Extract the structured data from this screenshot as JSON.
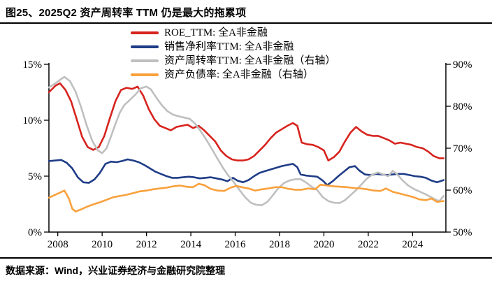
{
  "title": "图25、2025Q2 资产周转率 TTM 仍是最大的拖累项",
  "source_note": "数据来源：Wind，兴业证券经济与金融研究院整理",
  "chart_data": {
    "type": "line",
    "title": "图25、2025Q2 资产周转率 TTM 仍是最大的拖累项",
    "legend_position": "top-left-inside",
    "grid": "off",
    "x_axis": {
      "range": [
        2007.6,
        2025.5
      ],
      "ticks": [
        2008,
        2010,
        2012,
        2014,
        2016,
        2018,
        2020,
        2022,
        2024
      ],
      "labels": [
        "2008",
        "2010",
        "2012",
        "2014",
        "2016",
        "2018",
        "2020",
        "2022",
        "2024"
      ]
    },
    "left_axis": {
      "range": [
        0,
        15
      ],
      "tick_values": [
        0,
        5,
        10,
        15
      ],
      "tick_labels": [
        "0%",
        "5%",
        "10%",
        "15%"
      ]
    },
    "right_axis": {
      "range": [
        50,
        90
      ],
      "tick_values": [
        50,
        60,
        70,
        80,
        90
      ],
      "tick_labels": [
        "50%",
        "60%",
        "70%",
        "80%",
        "90%"
      ]
    },
    "series": [
      {
        "id": "roe_ttm",
        "name": "ROE_TTM: 全A非金融",
        "axis": "left",
        "color": "#d7231e",
        "points": [
          [
            2007.6,
            12.5
          ],
          [
            2007.9,
            13.1
          ],
          [
            2008.1,
            13.3
          ],
          [
            2008.35,
            12.7
          ],
          [
            2008.6,
            11.7
          ],
          [
            2008.85,
            10.1
          ],
          [
            2009.1,
            8.5
          ],
          [
            2009.35,
            7.6
          ],
          [
            2009.6,
            7.35
          ],
          [
            2009.85,
            7.6
          ],
          [
            2010.1,
            8.6
          ],
          [
            2010.35,
            10.2
          ],
          [
            2010.6,
            11.7
          ],
          [
            2010.85,
            12.7
          ],
          [
            2011.1,
            12.9
          ],
          [
            2011.35,
            12.8
          ],
          [
            2011.6,
            13.0
          ],
          [
            2011.85,
            12.2
          ],
          [
            2012.1,
            11.0
          ],
          [
            2012.35,
            10.1
          ],
          [
            2012.6,
            9.5
          ],
          [
            2012.85,
            9.3
          ],
          [
            2013.1,
            9.1
          ],
          [
            2013.35,
            9.4
          ],
          [
            2013.6,
            9.5
          ],
          [
            2013.85,
            9.6
          ],
          [
            2014.1,
            9.3
          ],
          [
            2014.35,
            9.5
          ],
          [
            2014.6,
            9.1
          ],
          [
            2014.85,
            8.6
          ],
          [
            2015.1,
            8.1
          ],
          [
            2015.35,
            7.3
          ],
          [
            2015.6,
            6.8
          ],
          [
            2015.85,
            6.5
          ],
          [
            2016.1,
            6.4
          ],
          [
            2016.35,
            6.4
          ],
          [
            2016.6,
            6.5
          ],
          [
            2016.85,
            6.8
          ],
          [
            2017.1,
            7.3
          ],
          [
            2017.35,
            7.8
          ],
          [
            2017.6,
            8.4
          ],
          [
            2017.85,
            8.9
          ],
          [
            2018.1,
            9.2
          ],
          [
            2018.35,
            9.5
          ],
          [
            2018.6,
            9.75
          ],
          [
            2018.8,
            9.5
          ],
          [
            2019.0,
            8.0
          ],
          [
            2019.25,
            7.85
          ],
          [
            2019.5,
            7.8
          ],
          [
            2019.75,
            7.6
          ],
          [
            2020.0,
            7.3
          ],
          [
            2020.2,
            6.4
          ],
          [
            2020.45,
            6.7
          ],
          [
            2020.7,
            7.2
          ],
          [
            2020.95,
            8.1
          ],
          [
            2021.2,
            8.9
          ],
          [
            2021.45,
            9.4
          ],
          [
            2021.7,
            9.0
          ],
          [
            2021.95,
            8.7
          ],
          [
            2022.2,
            8.6
          ],
          [
            2022.45,
            8.6
          ],
          [
            2022.7,
            8.4
          ],
          [
            2022.95,
            8.2
          ],
          [
            2023.2,
            7.9
          ],
          [
            2023.45,
            8.0
          ],
          [
            2023.7,
            7.9
          ],
          [
            2023.95,
            7.8
          ],
          [
            2024.2,
            7.6
          ],
          [
            2024.45,
            7.5
          ],
          [
            2024.7,
            7.2
          ],
          [
            2024.95,
            6.8
          ],
          [
            2025.2,
            6.6
          ],
          [
            2025.4,
            6.6
          ]
        ]
      },
      {
        "id": "net_margin_ttm",
        "name": "销售净利率TTM: 全A非金融",
        "axis": "left",
        "color": "#1f3c87",
        "points": [
          [
            2007.6,
            6.35
          ],
          [
            2007.9,
            6.4
          ],
          [
            2008.15,
            6.45
          ],
          [
            2008.4,
            6.2
          ],
          [
            2008.65,
            5.7
          ],
          [
            2008.9,
            4.9
          ],
          [
            2009.15,
            4.45
          ],
          [
            2009.4,
            4.4
          ],
          [
            2009.65,
            4.7
          ],
          [
            2009.9,
            5.3
          ],
          [
            2010.15,
            6.1
          ],
          [
            2010.4,
            6.3
          ],
          [
            2010.65,
            6.25
          ],
          [
            2010.9,
            6.35
          ],
          [
            2011.15,
            6.5
          ],
          [
            2011.4,
            6.4
          ],
          [
            2011.65,
            6.25
          ],
          [
            2011.9,
            6.0
          ],
          [
            2012.15,
            5.7
          ],
          [
            2012.4,
            5.4
          ],
          [
            2012.65,
            5.2
          ],
          [
            2012.9,
            5.0
          ],
          [
            2013.15,
            4.85
          ],
          [
            2013.4,
            4.85
          ],
          [
            2013.65,
            4.9
          ],
          [
            2013.9,
            4.95
          ],
          [
            2014.15,
            4.9
          ],
          [
            2014.4,
            4.8
          ],
          [
            2014.65,
            4.85
          ],
          [
            2014.9,
            4.9
          ],
          [
            2015.15,
            4.8
          ],
          [
            2015.4,
            4.7
          ],
          [
            2015.65,
            4.55
          ],
          [
            2015.9,
            4.85
          ],
          [
            2016.1,
            4.6
          ],
          [
            2016.35,
            4.45
          ],
          [
            2016.6,
            4.65
          ],
          [
            2016.85,
            5.0
          ],
          [
            2017.1,
            5.3
          ],
          [
            2017.35,
            5.45
          ],
          [
            2017.6,
            5.6
          ],
          [
            2017.85,
            5.75
          ],
          [
            2018.1,
            5.9
          ],
          [
            2018.35,
            6.0
          ],
          [
            2018.6,
            6.1
          ],
          [
            2018.8,
            5.8
          ],
          [
            2018.95,
            5.15
          ],
          [
            2019.2,
            5.05
          ],
          [
            2019.45,
            5.0
          ],
          [
            2019.7,
            4.95
          ],
          [
            2019.95,
            4.6
          ],
          [
            2020.15,
            4.2
          ],
          [
            2020.4,
            4.55
          ],
          [
            2020.65,
            5.0
          ],
          [
            2020.9,
            5.4
          ],
          [
            2021.15,
            5.8
          ],
          [
            2021.4,
            5.9
          ],
          [
            2021.6,
            5.5
          ],
          [
            2021.85,
            5.15
          ],
          [
            2022.1,
            5.1
          ],
          [
            2022.35,
            5.2
          ],
          [
            2022.6,
            5.15
          ],
          [
            2022.85,
            5.1
          ],
          [
            2023.1,
            5.15
          ],
          [
            2023.35,
            5.2
          ],
          [
            2023.6,
            5.2
          ],
          [
            2023.85,
            5.1
          ],
          [
            2024.1,
            5.0
          ],
          [
            2024.35,
            4.95
          ],
          [
            2024.6,
            4.85
          ],
          [
            2024.85,
            4.6
          ],
          [
            2025.1,
            4.45
          ],
          [
            2025.4,
            4.65
          ]
        ]
      },
      {
        "id": "asset_turnover_ttm",
        "name": "资产周转率TTM: 全A非金融（右轴）",
        "axis": "right",
        "color": "#bfbfbf",
        "points": [
          [
            2007.6,
            84.5
          ],
          [
            2007.85,
            85.3
          ],
          [
            2008.1,
            86.3
          ],
          [
            2008.3,
            87.0
          ],
          [
            2008.55,
            86.0
          ],
          [
            2008.8,
            83.5
          ],
          [
            2009.05,
            79.8
          ],
          [
            2009.3,
            75.5
          ],
          [
            2009.55,
            71.8
          ],
          [
            2009.8,
            69.5
          ],
          [
            2010.0,
            68.8
          ],
          [
            2010.2,
            70.0
          ],
          [
            2010.4,
            72.8
          ],
          [
            2010.6,
            75.8
          ],
          [
            2010.8,
            78.5
          ],
          [
            2011.0,
            80.3
          ],
          [
            2011.25,
            81.5
          ],
          [
            2011.5,
            82.8
          ],
          [
            2011.75,
            84.3
          ],
          [
            2012.0,
            84.7
          ],
          [
            2012.2,
            84.0
          ],
          [
            2012.45,
            82.0
          ],
          [
            2012.7,
            80.2
          ],
          [
            2012.95,
            78.8
          ],
          [
            2013.2,
            78.0
          ],
          [
            2013.45,
            77.6
          ],
          [
            2013.7,
            77.3
          ],
          [
            2013.95,
            77.0
          ],
          [
            2014.2,
            75.8
          ],
          [
            2014.45,
            74.0
          ],
          [
            2014.7,
            72.0
          ],
          [
            2014.95,
            69.8
          ],
          [
            2015.2,
            67.5
          ],
          [
            2015.45,
            65.3
          ],
          [
            2015.7,
            63.4
          ],
          [
            2015.95,
            61.8
          ],
          [
            2016.2,
            60.0
          ],
          [
            2016.45,
            58.3
          ],
          [
            2016.7,
            57.0
          ],
          [
            2016.95,
            56.5
          ],
          [
            2017.2,
            56.4
          ],
          [
            2017.45,
            57.2
          ],
          [
            2017.7,
            58.8
          ],
          [
            2017.95,
            60.5
          ],
          [
            2018.2,
            61.7
          ],
          [
            2018.45,
            62.3
          ],
          [
            2018.7,
            62.6
          ],
          [
            2018.95,
            62.6
          ],
          [
            2019.2,
            61.8
          ],
          [
            2019.45,
            60.8
          ],
          [
            2019.7,
            60.0
          ],
          [
            2019.95,
            58.3
          ],
          [
            2020.2,
            57.4
          ],
          [
            2020.45,
            57.0
          ],
          [
            2020.7,
            56.9
          ],
          [
            2020.95,
            57.6
          ],
          [
            2021.2,
            58.8
          ],
          [
            2021.45,
            60.0
          ],
          [
            2021.7,
            61.4
          ],
          [
            2021.95,
            62.8
          ],
          [
            2022.2,
            63.8
          ],
          [
            2022.45,
            64.2
          ],
          [
            2022.7,
            63.7
          ],
          [
            2022.9,
            63.3
          ],
          [
            2023.1,
            64.6
          ],
          [
            2023.3,
            63.8
          ],
          [
            2023.55,
            62.3
          ],
          [
            2023.8,
            61.1
          ],
          [
            2024.05,
            60.3
          ],
          [
            2024.3,
            59.7
          ],
          [
            2024.55,
            59.1
          ],
          [
            2024.8,
            58.4
          ],
          [
            2025.05,
            57.7
          ],
          [
            2025.2,
            57.4
          ],
          [
            2025.4,
            58.6
          ]
        ]
      },
      {
        "id": "debt_ratio",
        "name": "资产负债率: 全A非金融（右轴）",
        "axis": "right",
        "color": "#f9a13c",
        "points": [
          [
            2007.6,
            58.2
          ],
          [
            2007.85,
            58.8
          ],
          [
            2008.1,
            59.4
          ],
          [
            2008.3,
            59.9
          ],
          [
            2008.5,
            58.0
          ],
          [
            2008.65,
            55.6
          ],
          [
            2008.8,
            54.9
          ],
          [
            2009.05,
            55.4
          ],
          [
            2009.3,
            56.0
          ],
          [
            2009.6,
            56.6
          ],
          [
            2009.9,
            57.1
          ],
          [
            2010.2,
            57.7
          ],
          [
            2010.5,
            58.3
          ],
          [
            2010.8,
            58.6
          ],
          [
            2011.1,
            58.9
          ],
          [
            2011.4,
            59.3
          ],
          [
            2011.7,
            59.7
          ],
          [
            2012.0,
            59.9
          ],
          [
            2012.3,
            60.2
          ],
          [
            2012.6,
            60.4
          ],
          [
            2012.9,
            60.6
          ],
          [
            2013.2,
            60.9
          ],
          [
            2013.5,
            61.1
          ],
          [
            2013.8,
            60.8
          ],
          [
            2014.1,
            60.7
          ],
          [
            2014.35,
            61.5
          ],
          [
            2014.6,
            61.2
          ],
          [
            2014.9,
            60.3
          ],
          [
            2015.2,
            59.9
          ],
          [
            2015.5,
            59.8
          ],
          [
            2015.8,
            60.6
          ],
          [
            2016.05,
            61.0
          ],
          [
            2016.3,
            60.7
          ],
          [
            2016.6,
            60.4
          ],
          [
            2016.9,
            59.9
          ],
          [
            2017.2,
            60.2
          ],
          [
            2017.5,
            60.4
          ],
          [
            2017.8,
            60.7
          ],
          [
            2018.1,
            60.7
          ],
          [
            2018.4,
            60.3
          ],
          [
            2018.7,
            60.1
          ],
          [
            2019.0,
            60.1
          ],
          [
            2019.3,
            60.4
          ],
          [
            2019.6,
            60.2
          ],
          [
            2019.85,
            61.3
          ],
          [
            2020.15,
            61.1
          ],
          [
            2020.45,
            60.9
          ],
          [
            2020.75,
            60.8
          ],
          [
            2021.05,
            60.7
          ],
          [
            2021.35,
            60.5
          ],
          [
            2021.65,
            60.4
          ],
          [
            2021.95,
            60.2
          ],
          [
            2022.25,
            59.9
          ],
          [
            2022.55,
            59.8
          ],
          [
            2022.8,
            60.4
          ],
          [
            2023.1,
            59.6
          ],
          [
            2023.4,
            59.2
          ],
          [
            2023.7,
            58.8
          ],
          [
            2024.0,
            58.4
          ],
          [
            2024.3,
            57.8
          ],
          [
            2024.6,
            57.6
          ],
          [
            2024.85,
            58.0
          ],
          [
            2025.1,
            57.2
          ],
          [
            2025.4,
            57.4
          ]
        ]
      }
    ]
  }
}
